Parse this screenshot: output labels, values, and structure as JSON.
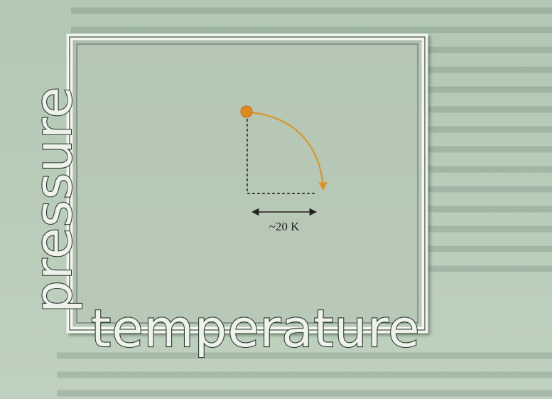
{
  "diagram": {
    "y_axis_label": "pressure",
    "x_axis_label": "temperature",
    "annotation": "~20 K"
  }
}
